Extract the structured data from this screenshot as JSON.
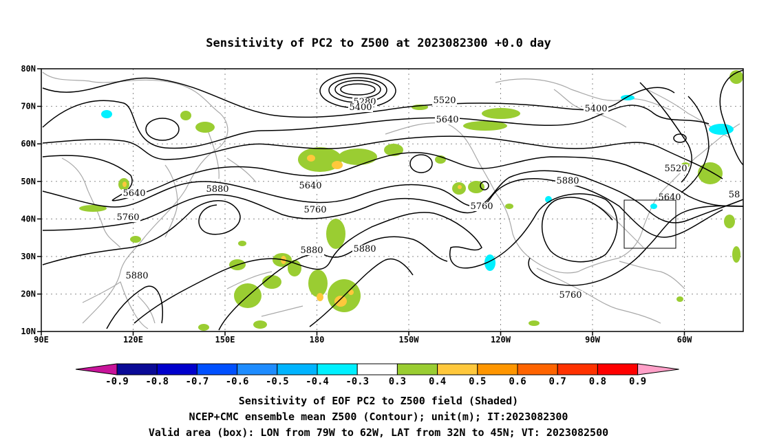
{
  "title": "Sensitivity of PC2 to Z500 at 2023082300 +0.0 day",
  "map": {
    "lat_labels": [
      "80N",
      "70N",
      "60N",
      "50N",
      "40N",
      "30N",
      "20N",
      "10N"
    ],
    "lon_labels": [
      "90E",
      "120E",
      "150E",
      "180",
      "150W",
      "120W",
      "90W",
      "60W"
    ],
    "lon_range": [
      "90E",
      "35W"
    ],
    "lat_range": [
      "10N",
      "80N"
    ],
    "valid_box": {
      "lon_from": "79W",
      "lon_to": "62W",
      "lat_from": "32N",
      "lat_to": "45N"
    },
    "contour_labels": [
      {
        "text": "5280"
      },
      {
        "text": "5400"
      },
      {
        "text": "5520"
      },
      {
        "text": "5400"
      },
      {
        "text": "5640"
      },
      {
        "text": "5520"
      },
      {
        "text": "5640"
      },
      {
        "text": "5880"
      },
      {
        "text": "5640"
      },
      {
        "text": "5640"
      },
      {
        "text": "5760"
      },
      {
        "text": "5760"
      },
      {
        "text": "5760"
      },
      {
        "text": "5880"
      },
      {
        "text": "5880"
      },
      {
        "text": "5880"
      },
      {
        "text": "5880"
      },
      {
        "text": "5760"
      },
      {
        "text": "58"
      }
    ]
  },
  "colorbar": {
    "labels": [
      "-0.9",
      "-0.8",
      "-0.7",
      "-0.6",
      "-0.5",
      "-0.4",
      "-0.3",
      "0.3",
      "0.4",
      "0.5",
      "0.6",
      "0.7",
      "0.8",
      "0.9"
    ],
    "colors": [
      "#0a0a96",
      "#0000cc",
      "#0050ff",
      "#1e8cff",
      "#00b4ff",
      "#00f0ff",
      "#ffffff",
      "#9acd32",
      "#ffc83c",
      "#ff9600",
      "#ff6400",
      "#ff3200",
      "#ff0000"
    ],
    "low_arrow_color": "#c8149a",
    "high_arrow_color": "#ffa0c8"
  },
  "caption": [
    "Sensitivity of EOF PC2 to Z500 field (Shaded)",
    "NCEP+CMC ensemble mean Z500 (Contour); unit(m); IT:2023082300",
    "Valid area (box): LON from 79W to 62W, LAT from 32N to 45N; VT: 2023082500"
  ]
}
